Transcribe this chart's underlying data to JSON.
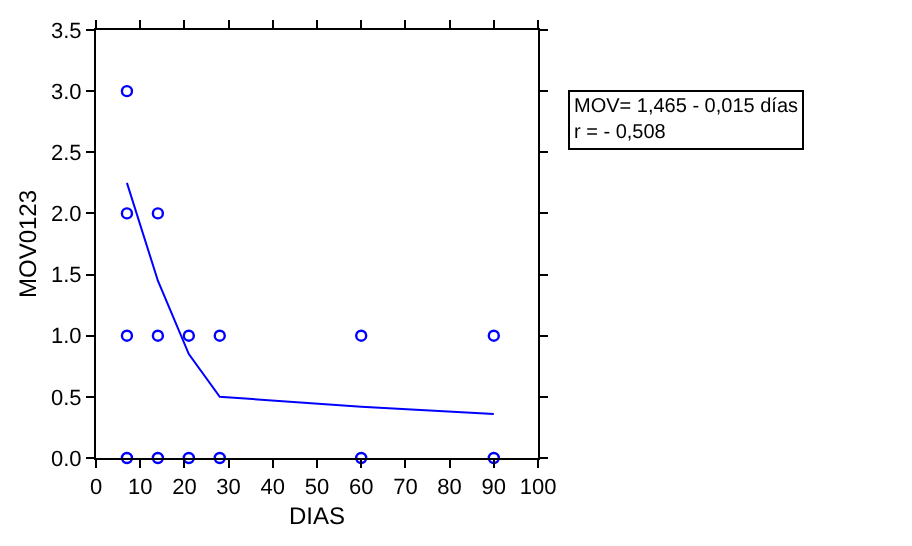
{
  "chart_data": {
    "type": "scatter",
    "xlabel": "DIAS",
    "ylabel": "MOV0123",
    "xlim": [
      0,
      100
    ],
    "xticks": [
      0,
      10,
      20,
      30,
      40,
      50,
      60,
      70,
      80,
      90,
      100
    ],
    "ylim": [
      0,
      3.5
    ],
    "yticks": [
      {
        "value": 0,
        "label": "0.0"
      },
      {
        "value": 0.5,
        "label": "0.5"
      },
      {
        "value": 1,
        "label": "1.0"
      },
      {
        "value": 1.5,
        "label": "1.5"
      },
      {
        "value": 2,
        "label": "2.0"
      },
      {
        "value": 2.5,
        "label": "2.5"
      },
      {
        "value": 3,
        "label": "3.0"
      },
      {
        "value": 3.5,
        "label": "3.5"
      }
    ],
    "series": [
      {
        "marker": "circle",
        "color": "#0000ff",
        "x": [
          7,
          7,
          7,
          7,
          14,
          14,
          14,
          21,
          21,
          28,
          28,
          60,
          60,
          90,
          90
        ],
        "values": [
          0,
          1,
          2,
          3,
          0,
          1,
          2,
          0,
          1,
          0,
          1,
          0,
          1,
          0,
          1
        ]
      },
      {
        "type": "line",
        "marker": "none",
        "color": "#0000ff",
        "x": [
          7,
          14,
          21,
          28,
          60,
          90
        ],
        "values": [
          2.25,
          1.45,
          0.85,
          0.5,
          0.42,
          0.36
        ]
      }
    ],
    "annotations": [
      "MOV= 1,465 - 0,015 días\nr = - 0,508"
    ]
  }
}
